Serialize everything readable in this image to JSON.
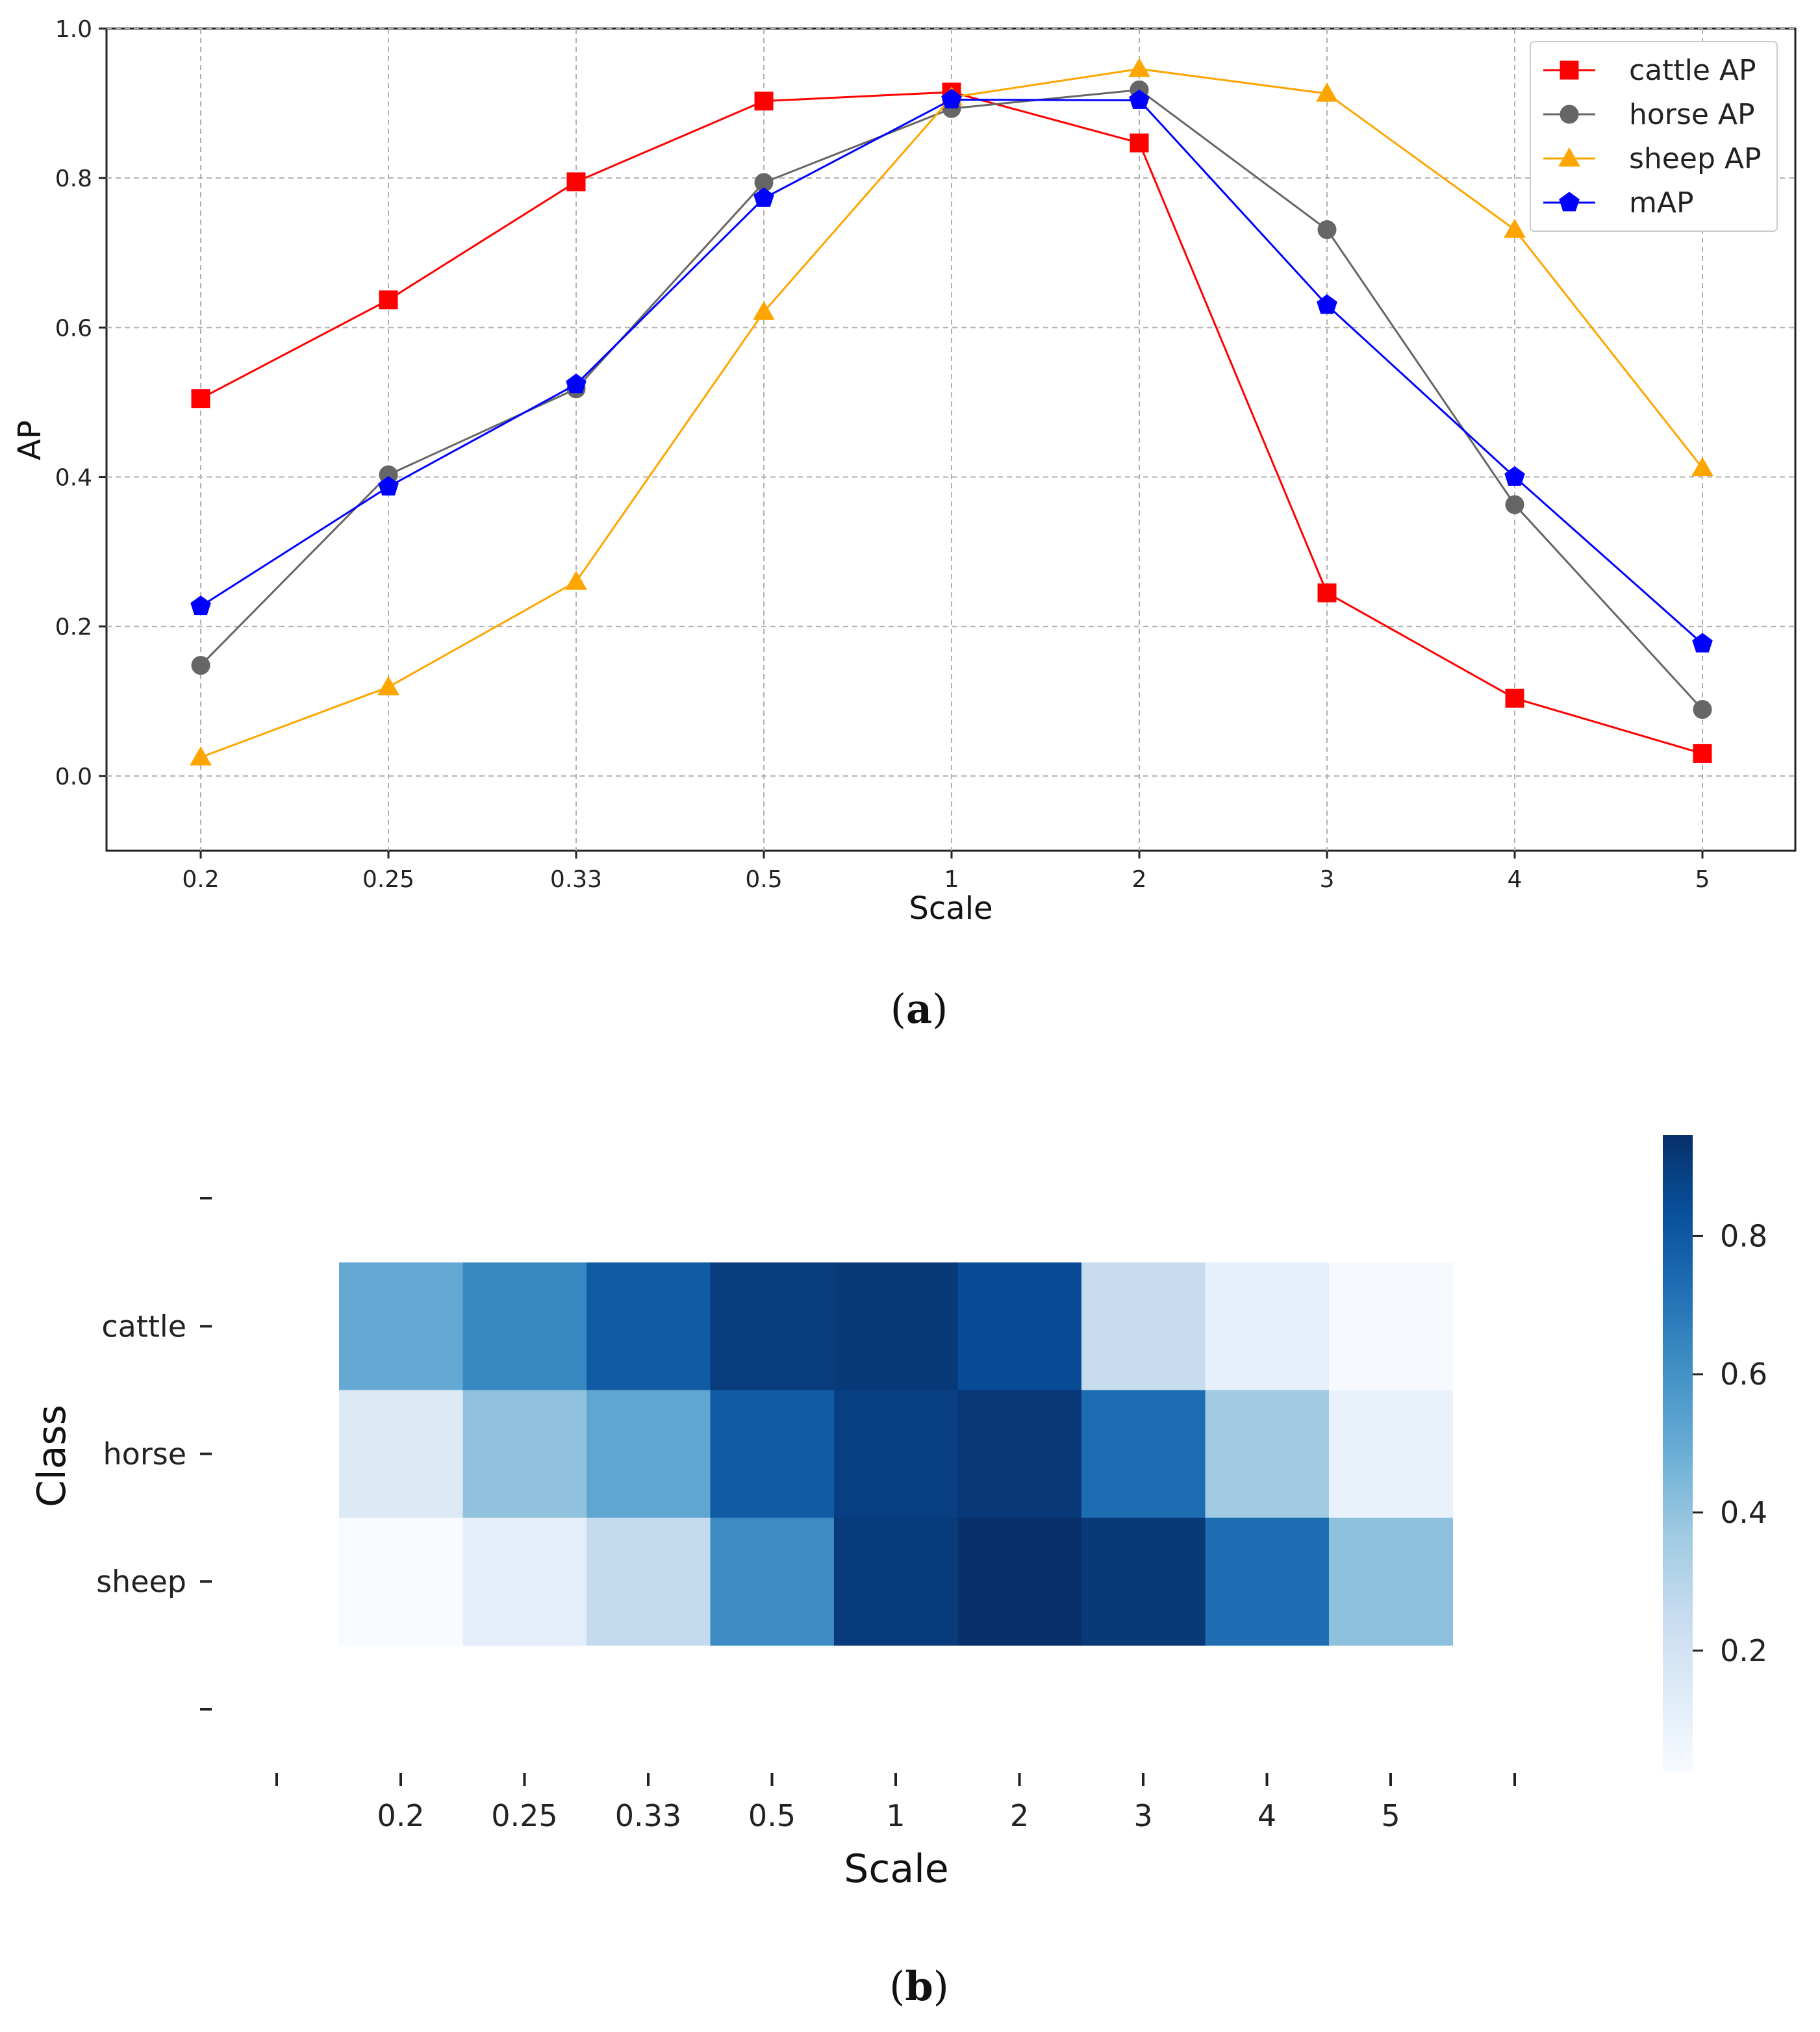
{
  "chart_data": [
    {
      "type": "line",
      "caption_letter": "a",
      "categories": [
        "0.2",
        "0.25",
        "0.33",
        "0.5",
        "1",
        "2",
        "3",
        "4",
        "5"
      ],
      "xlabel": "Scale",
      "ylabel": "AP",
      "ylim": [
        -0.1,
        1.0
      ],
      "yticks": [
        "0.0",
        "0.2",
        "0.4",
        "0.6",
        "0.8",
        "1.0"
      ],
      "grid": true,
      "legend_position": "top-right",
      "series": [
        {
          "name": "cattle AP",
          "color": "#ff0000",
          "marker": "square",
          "values": [
            0.505,
            0.637,
            0.795,
            0.903,
            0.915,
            0.847,
            0.245,
            0.104,
            0.03
          ]
        },
        {
          "name": "horse AP",
          "color": "#666666",
          "marker": "circle",
          "values": [
            0.148,
            0.403,
            0.518,
            0.794,
            0.893,
            0.918,
            0.731,
            0.363,
            0.089
          ]
        },
        {
          "name": "sheep AP",
          "color": "#ffa500",
          "marker": "triangle",
          "values": [
            0.025,
            0.119,
            0.26,
            0.621,
            0.908,
            0.946,
            0.913,
            0.731,
            0.412
          ]
        },
        {
          "name": "mAP",
          "color": "#0000ff",
          "marker": "pentagon",
          "values": [
            0.227,
            0.387,
            0.524,
            0.773,
            0.905,
            0.904,
            0.63,
            0.4,
            0.177
          ]
        }
      ]
    },
    {
      "type": "heatmap",
      "caption_letter": "b",
      "x": [
        "0.2",
        "0.25",
        "0.33",
        "0.5",
        "1",
        "2",
        "3",
        "4",
        "5"
      ],
      "y": [
        "cattle",
        "horse",
        "sheep"
      ],
      "xlabel": "Scale",
      "ylabel": "Class",
      "colormap": "Blues",
      "colorbar_ticks": [
        "0.2",
        "0.4",
        "0.6",
        "0.8"
      ],
      "colorbar_range": [
        0.025,
        0.946
      ],
      "values": [
        [
          0.505,
          0.637,
          0.795,
          0.903,
          0.915,
          0.847,
          0.245,
          0.104,
          0.03
        ],
        [
          0.148,
          0.403,
          0.518,
          0.794,
          0.893,
          0.918,
          0.731,
          0.363,
          0.089
        ],
        [
          0.025,
          0.119,
          0.26,
          0.621,
          0.908,
          0.946,
          0.913,
          0.731,
          0.412
        ]
      ]
    }
  ]
}
